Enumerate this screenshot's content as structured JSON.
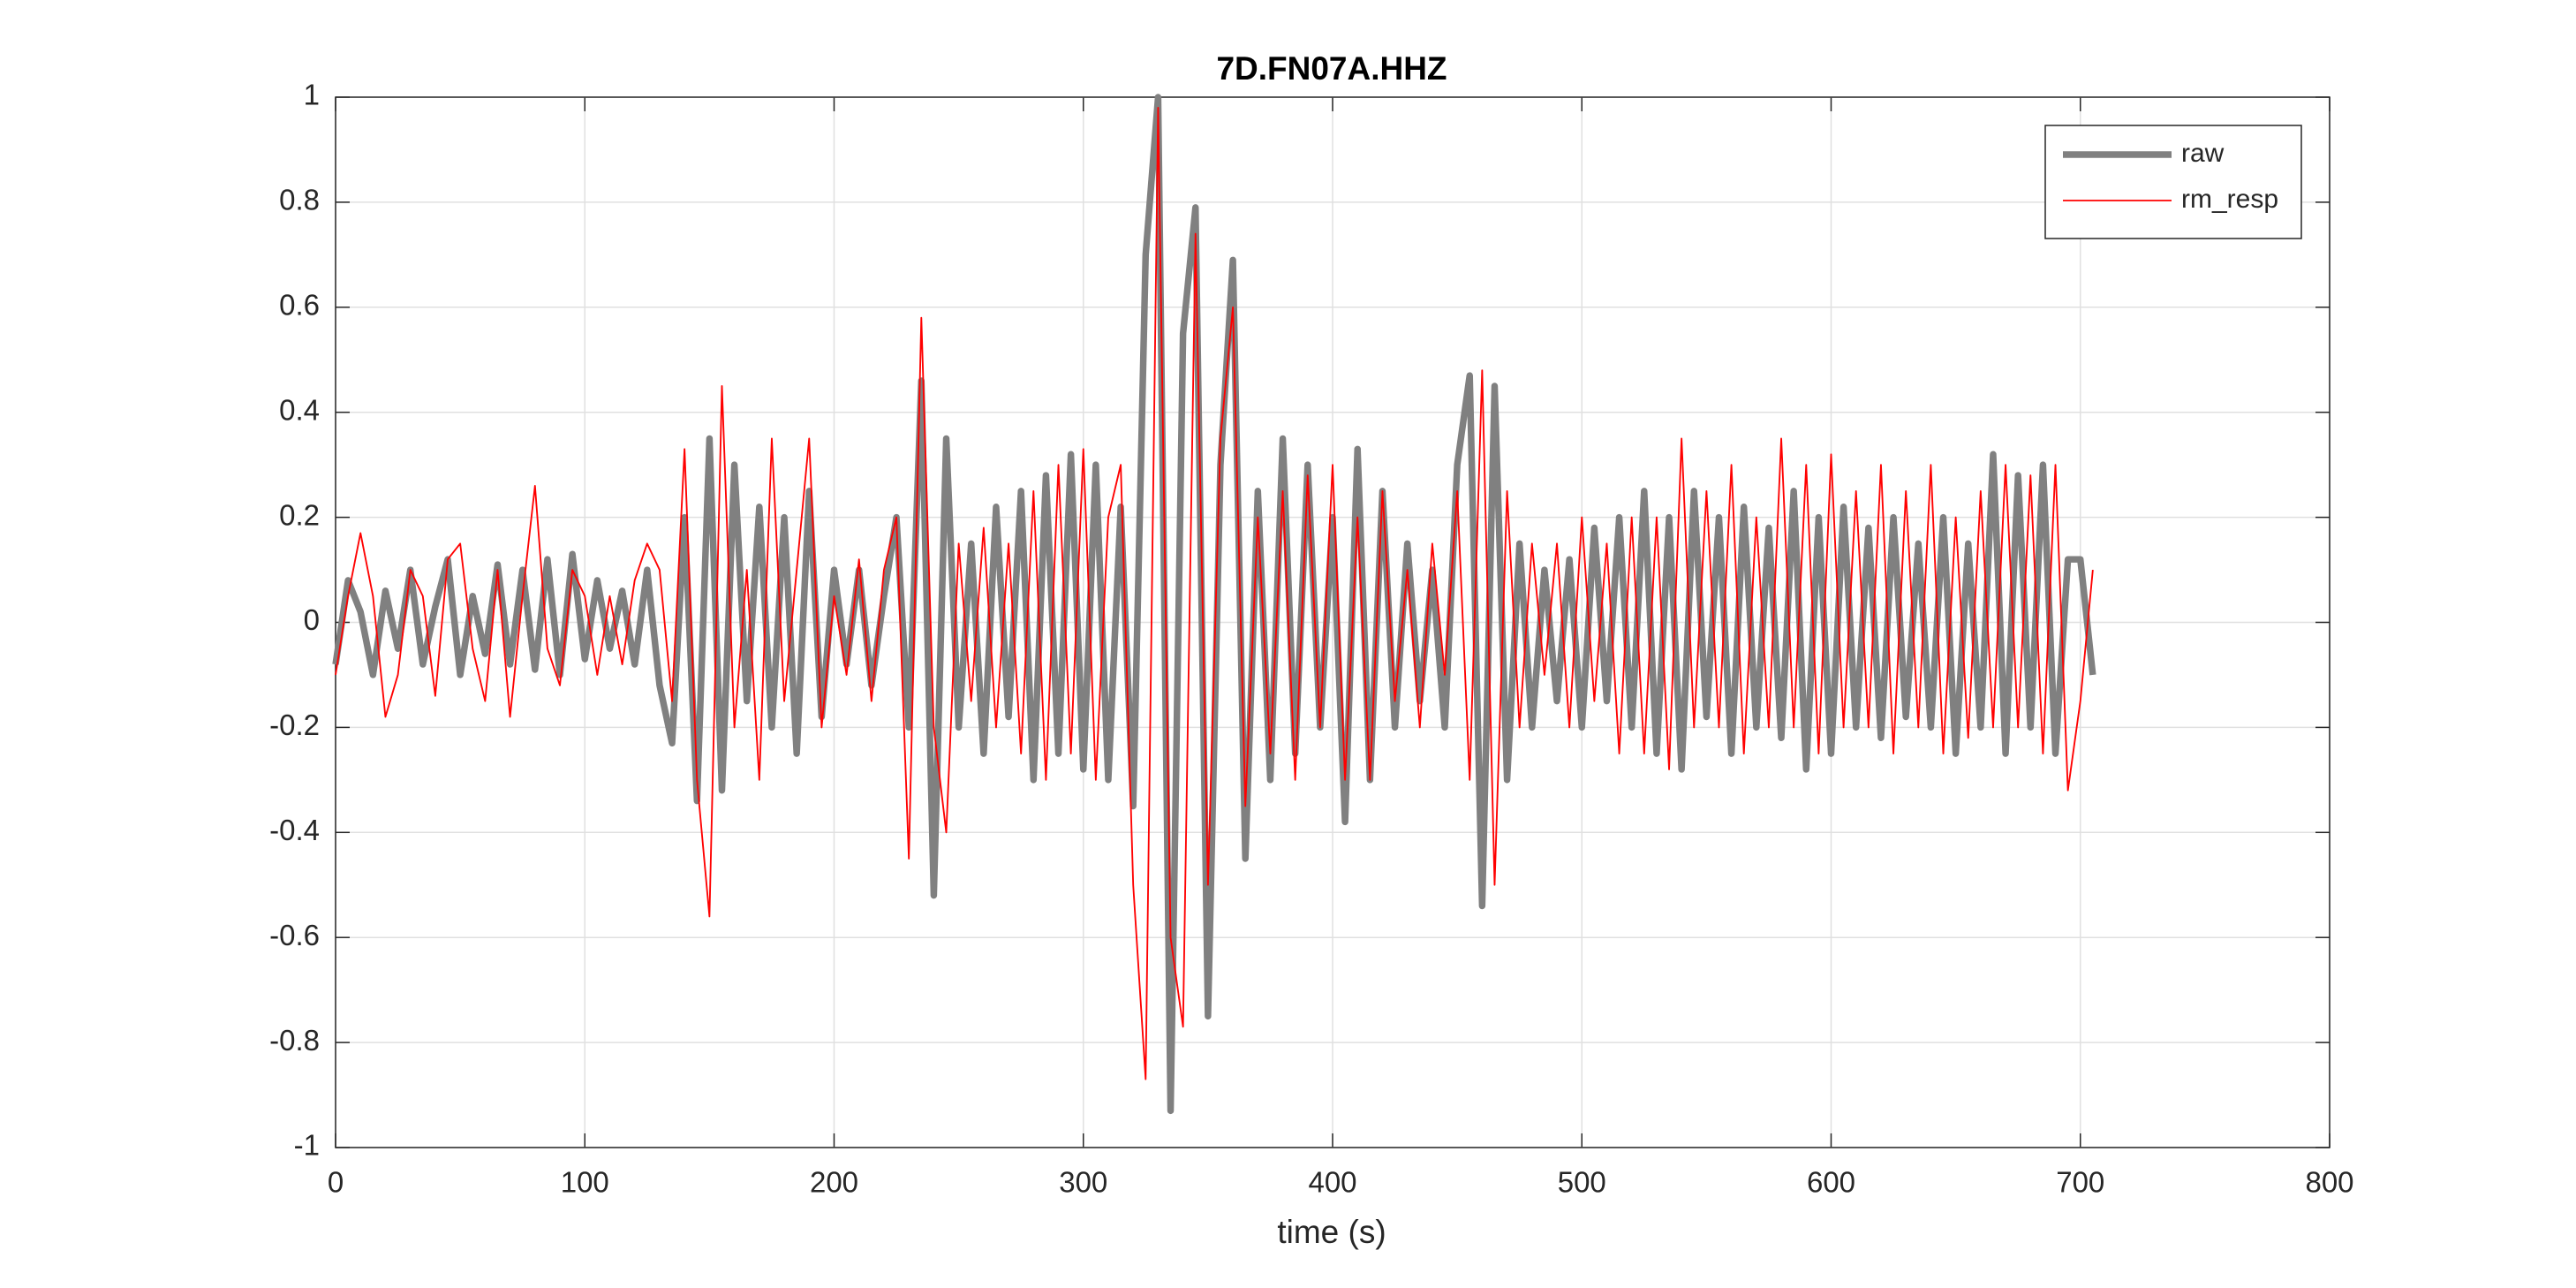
{
  "chart_data": {
    "type": "line",
    "title": "7D.FN07A.HHZ",
    "xlabel": "time (s)",
    "x": [
      0,
      5,
      10,
      15,
      20,
      25,
      30,
      35,
      40,
      45,
      50,
      55,
      60,
      65,
      70,
      75,
      80,
      85,
      90,
      95,
      100,
      105,
      110,
      115,
      120,
      125,
      130,
      135,
      140,
      145,
      150,
      155,
      160,
      165,
      170,
      175,
      180,
      185,
      190,
      195,
      200,
      205,
      210,
      215,
      220,
      225,
      230,
      235,
      240,
      245,
      250,
      255,
      260,
      265,
      270,
      275,
      280,
      285,
      290,
      295,
      300,
      305,
      310,
      315,
      320,
      325,
      330,
      335,
      340,
      345,
      350,
      355,
      360,
      365,
      370,
      375,
      380,
      385,
      390,
      395,
      400,
      405,
      410,
      415,
      420,
      425,
      430,
      435,
      440,
      445,
      450,
      455,
      460,
      465,
      470,
      475,
      480,
      485,
      490,
      495,
      500,
      505,
      510,
      515,
      520,
      525,
      530,
      535,
      540,
      545,
      550,
      555,
      560,
      565,
      570,
      575,
      580,
      585,
      590,
      595,
      600,
      605,
      610,
      615,
      620,
      625,
      630,
      635,
      640,
      645,
      650,
      655,
      660,
      665,
      670,
      675,
      680,
      685,
      690,
      695,
      700,
      705
    ],
    "series": [
      {
        "name": "raw",
        "color": "#808080",
        "width": 4,
        "values": [
          -0.08,
          0.08,
          0.02,
          -0.1,
          0.06,
          -0.05,
          0.1,
          -0.08,
          0.03,
          0.12,
          -0.1,
          0.05,
          -0.06,
          0.11,
          -0.08,
          0.1,
          -0.09,
          0.12,
          -0.1,
          0.13,
          -0.07,
          0.08,
          -0.05,
          0.06,
          -0.08,
          0.1,
          -0.12,
          -0.23,
          0.2,
          -0.34,
          0.35,
          -0.32,
          0.3,
          -0.15,
          0.22,
          -0.2,
          0.2,
          -0.25,
          0.25,
          -0.18,
          0.1,
          -0.08,
          0.1,
          -0.12,
          0.05,
          0.2,
          -0.2,
          0.46,
          -0.52,
          0.35,
          -0.2,
          0.15,
          -0.25,
          0.22,
          -0.18,
          0.25,
          -0.3,
          0.28,
          -0.25,
          0.32,
          -0.28,
          0.3,
          -0.3,
          0.22,
          -0.35,
          0.7,
          1.0,
          -0.93,
          0.55,
          0.79,
          -0.75,
          0.3,
          0.69,
          -0.45,
          0.25,
          -0.3,
          0.35,
          -0.25,
          0.3,
          -0.2,
          0.2,
          -0.38,
          0.33,
          -0.3,
          0.25,
          -0.2,
          0.15,
          -0.15,
          0.1,
          -0.2,
          0.3,
          0.47,
          -0.54,
          0.45,
          -0.3,
          0.15,
          -0.2,
          0.1,
          -0.15,
          0.12,
          -0.2,
          0.18,
          -0.15,
          0.2,
          -0.2,
          0.25,
          -0.25,
          0.2,
          -0.28,
          0.25,
          -0.18,
          0.2,
          -0.25,
          0.22,
          -0.2,
          0.18,
          -0.22,
          0.25,
          -0.28,
          0.2,
          -0.25,
          0.22,
          -0.2,
          0.18,
          -0.22,
          0.2,
          -0.18,
          0.15,
          -0.2,
          0.2,
          -0.25,
          0.15,
          -0.2,
          0.32,
          -0.25,
          0.28,
          -0.2,
          0.3,
          -0.25,
          0.12,
          0.12,
          -0.1
        ]
      },
      {
        "name": "rm_resp",
        "color": "#ff0000",
        "width": 1,
        "values": [
          -0.1,
          0.05,
          0.17,
          0.05,
          -0.18,
          -0.1,
          0.1,
          0.05,
          -0.14,
          0.12,
          0.15,
          -0.05,
          -0.15,
          0.1,
          -0.18,
          0.05,
          0.26,
          -0.05,
          -0.12,
          0.1,
          0.05,
          -0.1,
          0.05,
          -0.08,
          0.08,
          0.15,
          0.1,
          -0.15,
          0.33,
          -0.3,
          -0.56,
          0.45,
          -0.2,
          0.1,
          -0.3,
          0.35,
          -0.15,
          0.1,
          0.35,
          -0.2,
          0.05,
          -0.1,
          0.12,
          -0.15,
          0.1,
          0.2,
          -0.45,
          0.58,
          -0.2,
          -0.4,
          0.15,
          -0.15,
          0.18,
          -0.2,
          0.15,
          -0.25,
          0.25,
          -0.3,
          0.3,
          -0.25,
          0.33,
          -0.3,
          0.2,
          0.3,
          -0.5,
          -0.87,
          0.98,
          -0.6,
          -0.77,
          0.74,
          -0.5,
          0.35,
          0.6,
          -0.35,
          0.2,
          -0.25,
          0.25,
          -0.3,
          0.28,
          -0.2,
          0.3,
          -0.3,
          0.2,
          -0.3,
          0.25,
          -0.15,
          0.1,
          -0.2,
          0.15,
          -0.1,
          0.25,
          -0.3,
          0.48,
          -0.5,
          0.25,
          -0.2,
          0.15,
          -0.1,
          0.15,
          -0.2,
          0.2,
          -0.15,
          0.15,
          -0.25,
          0.2,
          -0.25,
          0.2,
          -0.28,
          0.35,
          -0.2,
          0.25,
          -0.2,
          0.3,
          -0.25,
          0.2,
          -0.2,
          0.35,
          -0.2,
          0.3,
          -0.25,
          0.32,
          -0.2,
          0.25,
          -0.2,
          0.3,
          -0.25,
          0.25,
          -0.2,
          0.3,
          -0.25,
          0.2,
          -0.22,
          0.25,
          -0.2,
          0.3,
          -0.2,
          0.28,
          -0.25,
          0.3,
          -0.32,
          -0.15,
          0.1
        ]
      }
    ],
    "xlim": [
      0,
      800
    ],
    "xticks": [
      0,
      100,
      200,
      300,
      400,
      500,
      600,
      700,
      800
    ],
    "ylim": [
      -1,
      1
    ],
    "yticks": [
      -1,
      -0.8,
      -0.6,
      -0.4,
      -0.2,
      0,
      0.2,
      0.4,
      0.6,
      0.8,
      1
    ],
    "grid": true,
    "legend": "northeast"
  }
}
